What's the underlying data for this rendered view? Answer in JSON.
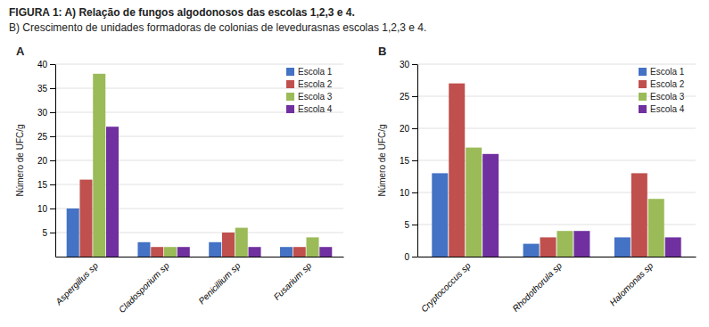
{
  "title": "FIGURA 1: A) Relação de fungos algodonosos das escolas 1,2,3 e 4.",
  "subtitle": "B) Crescimento de unidades formadoras de colonias de levedurasnas escolas 1,2,3 e 4.",
  "chart_data": [
    {
      "type": "bar",
      "title": "A",
      "categories": [
        "Aspergillus sp",
        "Cladosporium sp",
        "Penicillium sp",
        "Fusarium sp"
      ],
      "ylabel": "Número de UFC/g",
      "ylim": [
        0,
        40
      ],
      "yticks": [
        5,
        10,
        15,
        20,
        25,
        30,
        35,
        40
      ],
      "grid": true,
      "legend": "upper right",
      "series": [
        {
          "name": "Escola 1",
          "color": "#4472C4",
          "values": [
            10,
            3,
            3,
            2
          ]
        },
        {
          "name": "Escola 2",
          "color": "#C0504D",
          "values": [
            16,
            2,
            5,
            2
          ]
        },
        {
          "name": "Escola 3",
          "color": "#9BBB59",
          "values": [
            38,
            2,
            6,
            4
          ]
        },
        {
          "name": "Escola 4",
          "color": "#7030A0",
          "values": [
            27,
            2,
            2,
            2
          ]
        }
      ]
    },
    {
      "type": "bar",
      "title": "B",
      "categories": [
        "Cryptococcus sp",
        "Rhodothorula sp",
        "Halomonas sp"
      ],
      "ylabel": "Número de UFC/g",
      "ylim": [
        0,
        30
      ],
      "yticks": [
        0,
        5,
        10,
        15,
        20,
        25,
        30
      ],
      "grid": true,
      "legend": "upper right",
      "series": [
        {
          "name": "Escola 1",
          "color": "#4472C4",
          "values": [
            13,
            2,
            3
          ]
        },
        {
          "name": "Escola 2",
          "color": "#C0504D",
          "values": [
            27,
            3,
            13
          ]
        },
        {
          "name": "Escola 3",
          "color": "#9BBB59",
          "values": [
            17,
            4,
            9
          ]
        },
        {
          "name": "Escola 4",
          "color": "#7030A0",
          "values": [
            16,
            4,
            3
          ]
        }
      ]
    }
  ]
}
